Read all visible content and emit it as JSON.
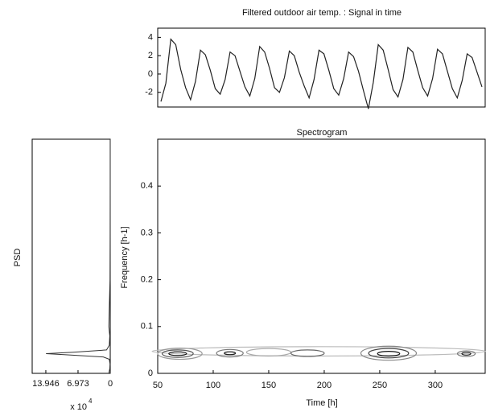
{
  "chart_data": [
    {
      "type": "line",
      "title": "Filtered outdoor air temp. : Signal in time",
      "color": "#222222",
      "values": [
        -3.0,
        -1.0,
        3.8,
        3.2,
        0.5,
        -1.5,
        -2.8,
        -0.8,
        2.6,
        2.1,
        0.4,
        -1.6,
        -2.2,
        -0.6,
        2.4,
        2.0,
        0.3,
        -1.4,
        -2.4,
        -0.5,
        3.0,
        2.4,
        0.6,
        -1.5,
        -2.0,
        -0.4,
        2.5,
        2.0,
        0.2,
        -1.3,
        -2.6,
        -0.6,
        2.6,
        2.2,
        0.4,
        -1.6,
        -2.3,
        -0.5,
        2.4,
        1.9,
        0.3,
        -1.8,
        -3.8,
        -0.9,
        3.2,
        2.6,
        0.5,
        -1.7,
        -2.5,
        -0.6,
        2.9,
        2.4,
        0.4,
        -1.5,
        -2.4,
        -0.5,
        2.7,
        2.2,
        0.3,
        -1.6,
        -2.6,
        -0.7,
        2.2,
        1.8,
        0.2,
        -1.4
      ],
      "ylim": [
        -3.6,
        5
      ],
      "yticks": [
        4,
        2,
        0,
        -2
      ]
    },
    {
      "type": "psd",
      "ylabel": "PSD",
      "color": "#333333",
      "psd": [
        0.3,
        0.1,
        0.05,
        0.2,
        1.5,
        10,
        13.9,
        8,
        0.8,
        0.2,
        0.1,
        0.3,
        0.05,
        0.02,
        0.01,
        0.01
      ],
      "frequency": [
        0,
        0.01,
        0.02,
        0.03,
        0.035,
        0.04,
        0.042,
        0.045,
        0.05,
        0.06,
        0.08,
        0.1,
        0.2,
        0.3,
        0.4,
        0.5
      ],
      "xlim": [
        16.9,
        0
      ],
      "xticks": [
        13.946,
        6.973,
        0
      ],
      "ylim": [
        0,
        0.5
      ],
      "x_multiplier": "x 10",
      "x_exponent": "4"
    },
    {
      "type": "contour",
      "title": "Spectrogram",
      "xlabel": "Time [h]",
      "ylabel": "Frequency [h-1]",
      "xlim": [
        50,
        345
      ],
      "ylim": [
        0,
        0.5
      ],
      "xticks": [
        50,
        100,
        150,
        200,
        250,
        300
      ],
      "yticks": [
        0,
        0.1,
        0.2,
        0.3,
        0.4
      ],
      "contours": [
        {
          "time": 195,
          "frequency": 0.047,
          "time_span": 150,
          "frequency_span": 0.01,
          "color": "#bbbbbb"
        },
        {
          "time": 70,
          "frequency": 0.042,
          "time_span": 20,
          "frequency_span": 0.012,
          "color": "#999999"
        },
        {
          "time": 68,
          "frequency": 0.042,
          "time_span": 14,
          "frequency_span": 0.008,
          "color": "#555555"
        },
        {
          "time": 68,
          "frequency": 0.042,
          "time_span": 8,
          "frequency_span": 0.004,
          "color": "#111111"
        },
        {
          "time": 115,
          "frequency": 0.043,
          "time_span": 12,
          "frequency_span": 0.008,
          "color": "#777777"
        },
        {
          "time": 115,
          "frequency": 0.043,
          "time_span": 5,
          "frequency_span": 0.003,
          "color": "#222222"
        },
        {
          "time": 150,
          "frequency": 0.045,
          "time_span": 20,
          "frequency_span": 0.008,
          "color": "#aaaaaa"
        },
        {
          "time": 185,
          "frequency": 0.043,
          "time_span": 15,
          "frequency_span": 0.007,
          "color": "#666666"
        },
        {
          "time": 258,
          "frequency": 0.043,
          "time_span": 25,
          "frequency_span": 0.015,
          "color": "#888888"
        },
        {
          "time": 258,
          "frequency": 0.043,
          "time_span": 18,
          "frequency_span": 0.01,
          "color": "#444444"
        },
        {
          "time": 258,
          "frequency": 0.042,
          "time_span": 10,
          "frequency_span": 0.005,
          "color": "#111111"
        },
        {
          "time": 328,
          "frequency": 0.042,
          "time_span": 8,
          "frequency_span": 0.006,
          "color": "#777777"
        },
        {
          "time": 328,
          "frequency": 0.042,
          "time_span": 4,
          "frequency_span": 0.003,
          "color": "#222222"
        }
      ]
    }
  ]
}
